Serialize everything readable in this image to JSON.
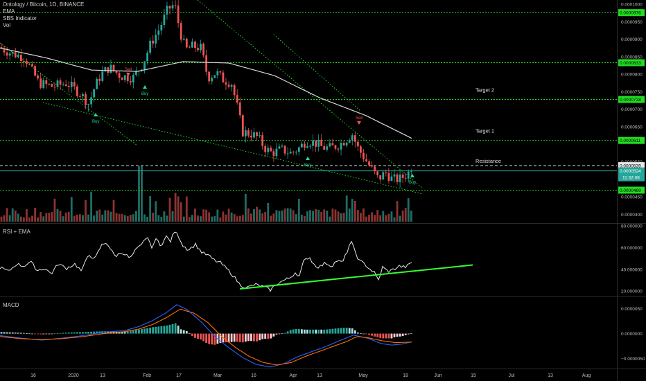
{
  "title": "Ontology / Bitcoin, 1D, BINANCE",
  "legend": {
    "items": [
      "EMA",
      "SBS Indicator",
      "Vol"
    ],
    "rsi_title": "RSI + EMA",
    "macd_title": "MACD"
  },
  "colors": {
    "up": "#26a69a",
    "down": "#ef5350",
    "level": "#22dd22",
    "ema": "#d8d8d8",
    "rsi": "#e8e8e8",
    "trend": "#33ff33",
    "macd_line": "#2962ff",
    "signal_line": "#ff6d00",
    "buy": "#26d9a0",
    "sell": "#ef5350"
  },
  "chart_data": [
    {
      "type": "candlestick",
      "title": "Ontology / Bitcoin, 1D, BINANCE",
      "ylim": [
        3.75e-05,
        0.0001012
      ],
      "y_ticks": [
        4e-05,
        4.5e-05,
        5e-05,
        5.5e-05,
        6.5e-05,
        7e-05,
        7.5e-05,
        8e-05,
        8.5e-05,
        9e-05,
        9.5e-05,
        0.0001
      ],
      "horizontal_levels": [
        9.76e-05,
        8.33e-05,
        7.28e-05,
        6.11e-05,
        4.69e-05
      ],
      "resistance_level": 5.39e-05,
      "current_price": 5.24e-05,
      "countdown": "11:32:08",
      "annotations": [
        "Target 2",
        "Target 1",
        "Resistance"
      ],
      "signal_labels": [
        "Buy",
        "Sell",
        "Buy",
        "Buy",
        "Sell",
        "Buy"
      ],
      "ema_anchors": [
        8.75e-05,
        8.47e-05,
        8.12e-05,
        8.08e-05,
        8.36e-05,
        8.32e-05,
        7.96e-05,
        7.32e-05,
        6.82e-05,
        6.17e-05
      ]
    },
    {
      "type": "line",
      "title": "RSI + EMA",
      "ylim": [
        15,
        82
      ],
      "y_ticks": [
        20.0,
        40.0,
        60.0,
        80.0
      ],
      "trendline": [
        [
          346,
          22
        ],
        [
          682,
          44
        ]
      ],
      "anchors": [
        [
          0,
          42
        ],
        [
          12,
          38
        ],
        [
          24,
          45
        ],
        [
          34,
          43
        ],
        [
          44,
          47
        ],
        [
          54,
          39
        ],
        [
          64,
          41
        ],
        [
          74,
          36
        ],
        [
          84,
          45
        ],
        [
          96,
          41
        ],
        [
          108,
          45
        ],
        [
          118,
          38
        ],
        [
          128,
          55
        ],
        [
          136,
          48
        ],
        [
          146,
          62
        ],
        [
          154,
          65
        ],
        [
          160,
          58
        ],
        [
          166,
          52
        ],
        [
          176,
          56
        ],
        [
          188,
          50
        ],
        [
          196,
          58
        ],
        [
          204,
          62
        ],
        [
          212,
          71
        ],
        [
          218,
          60
        ],
        [
          226,
          68
        ],
        [
          232,
          62
        ],
        [
          240,
          70
        ],
        [
          246,
          66
        ],
        [
          252,
          75
        ],
        [
          258,
          70
        ],
        [
          264,
          62
        ],
        [
          272,
          58
        ],
        [
          282,
          63
        ],
        [
          292,
          55
        ],
        [
          300,
          53
        ],
        [
          310,
          48
        ],
        [
          318,
          46
        ],
        [
          328,
          40
        ],
        [
          338,
          33
        ],
        [
          346,
          26
        ],
        [
          356,
          23
        ],
        [
          368,
          26
        ],
        [
          380,
          24
        ],
        [
          390,
          21
        ],
        [
          400,
          27
        ],
        [
          410,
          30
        ],
        [
          418,
          32
        ],
        [
          426,
          37
        ],
        [
          432,
          34
        ],
        [
          438,
          47
        ],
        [
          446,
          52
        ],
        [
          452,
          45
        ],
        [
          460,
          42
        ],
        [
          470,
          46
        ],
        [
          478,
          43
        ],
        [
          486,
          48
        ],
        [
          494,
          46
        ],
        [
          500,
          55
        ],
        [
          506,
          66
        ],
        [
          512,
          57
        ],
        [
          518,
          48
        ],
        [
          526,
          45
        ],
        [
          534,
          40
        ],
        [
          540,
          37
        ],
        [
          546,
          30
        ],
        [
          552,
          42
        ],
        [
          560,
          38
        ],
        [
          568,
          40
        ],
        [
          576,
          43
        ],
        [
          584,
          42
        ],
        [
          590,
          44
        ],
        [
          596,
          48
        ]
      ]
    },
    {
      "type": "bar",
      "title": "MACD",
      "ylim": [
        -7e-06,
        7.3e-06
      ],
      "y_ticks": [
        5e-06,
        0.0,
        -5e-06
      ],
      "macd_anchors": [
        [
          0,
          -0.4
        ],
        [
          30,
          -0.9
        ],
        [
          60,
          -1.3
        ],
        [
          90,
          -0.9
        ],
        [
          120,
          -0.4
        ],
        [
          150,
          0.3
        ],
        [
          180,
          0.6
        ],
        [
          200,
          1.4
        ],
        [
          220,
          2.6
        ],
        [
          240,
          4.2
        ],
        [
          255,
          5.8
        ],
        [
          270,
          4.8
        ],
        [
          290,
          2.4
        ],
        [
          310,
          -0.6
        ],
        [
          330,
          -2.8
        ],
        [
          350,
          -4.8
        ],
        [
          370,
          -6.2
        ],
        [
          390,
          -6.7
        ],
        [
          410,
          -6.0
        ],
        [
          430,
          -4.6
        ],
        [
          450,
          -3.6
        ],
        [
          470,
          -2.6
        ],
        [
          490,
          -1.4
        ],
        [
          510,
          -0.3
        ],
        [
          530,
          -0.9
        ],
        [
          550,
          -2.0
        ],
        [
          565,
          -2.3
        ],
        [
          580,
          -2.1
        ],
        [
          596,
          -1.6
        ]
      ],
      "signal_anchors": [
        [
          0,
          -0.6
        ],
        [
          30,
          -1.0
        ],
        [
          60,
          -1.2
        ],
        [
          90,
          -1.0
        ],
        [
          120,
          -0.6
        ],
        [
          150,
          0.0
        ],
        [
          180,
          0.4
        ],
        [
          200,
          0.9
        ],
        [
          220,
          1.8
        ],
        [
          240,
          3.2
        ],
        [
          260,
          4.9
        ],
        [
          280,
          4.1
        ],
        [
          300,
          2.2
        ],
        [
          320,
          -0.6
        ],
        [
          340,
          -2.8
        ],
        [
          360,
          -4.6
        ],
        [
          380,
          -5.8
        ],
        [
          400,
          -6.3
        ],
        [
          420,
          -5.8
        ],
        [
          440,
          -4.6
        ],
        [
          460,
          -3.6
        ],
        [
          480,
          -2.6
        ],
        [
          500,
          -1.6
        ],
        [
          515,
          -0.6
        ],
        [
          530,
          -0.8
        ],
        [
          550,
          -1.4
        ],
        [
          570,
          -1.8
        ],
        [
          596,
          -1.7
        ]
      ]
    }
  ],
  "time_axis": {
    "labels": [
      "16",
      "2020",
      "13",
      "Feb",
      "17",
      "Mar",
      "16",
      "Apr",
      "13",
      "May",
      "18",
      "Jun",
      "15",
      "Jul",
      "13",
      "Aug"
    ]
  }
}
